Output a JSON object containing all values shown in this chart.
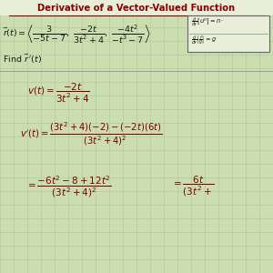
{
  "title": "Derivative of a Vector-Valued Function",
  "title_color": "#8B0000",
  "title_fontsize": 7.2,
  "bg_color": "#ccddb0",
  "grid_color": "#adc898",
  "text_color": "#1a1a1a",
  "dark_red": "#7B0000",
  "title_bg": "#e8eed8",
  "box_bg": "#e8eed8",
  "separator_color": "#999999",
  "figsize": [
    3.0,
    3.0
  ],
  "dpi": 100
}
